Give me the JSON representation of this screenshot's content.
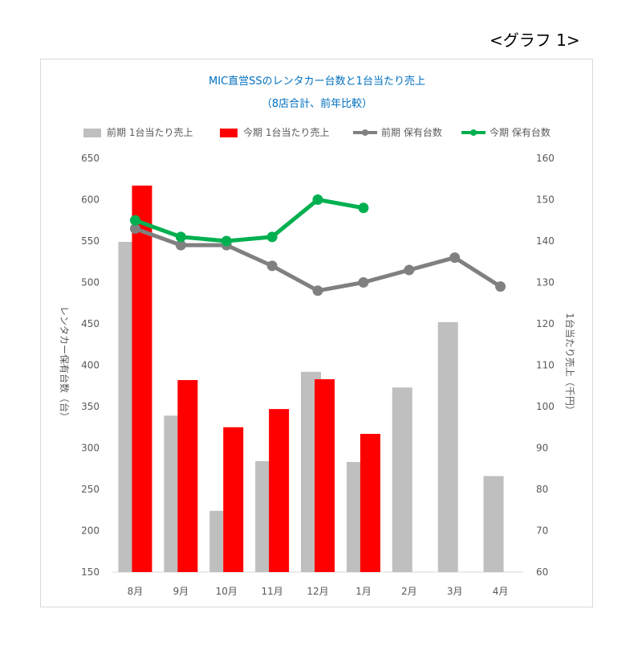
{
  "graph_label": "<グラフ 1>",
  "chart_data": {
    "type": "bar",
    "title": "MIC直営SSのレンタカー台数と1台当たり売上",
    "subtitle": "（8店合計、前年比較）",
    "categories": [
      "8月",
      "9月",
      "10月",
      "11月",
      "12月",
      "1月",
      "2月",
      "3月",
      "4月"
    ],
    "left_axis": {
      "label": "レンタカー保有台数（台）",
      "min": 150,
      "max": 650,
      "step": 50,
      "ticks": [
        "150",
        "200",
        "250",
        "300",
        "350",
        "400",
        "450",
        "500",
        "550",
        "600",
        "650"
      ]
    },
    "right_axis": {
      "label": "1台当たり売上（千円）",
      "min": 60,
      "max": 160,
      "step": 10,
      "ticks": [
        "60",
        "70",
        "80",
        "90",
        "100",
        "110",
        "120",
        "130",
        "140",
        "150",
        "160"
      ]
    },
    "legend_position": "top",
    "series": [
      {
        "name": "前期 1台当たり売上",
        "kind": "bar",
        "axis": "left",
        "color": "#bfbfbf",
        "values": [
          549,
          339,
          224,
          284,
          392,
          283,
          373,
          452,
          266
        ]
      },
      {
        "name": "今期 1台当たり売上",
        "kind": "bar",
        "axis": "left",
        "color": "#ff0000",
        "values": [
          617,
          382,
          325,
          347,
          383,
          317,
          null,
          null,
          null
        ]
      },
      {
        "name": "前期 保有台数",
        "kind": "line",
        "axis": "right",
        "color": "#808080",
        "values": [
          143,
          139,
          139,
          134,
          128,
          130,
          133,
          136,
          129
        ]
      },
      {
        "name": "今期 保有台数",
        "kind": "line",
        "axis": "right",
        "color": "#00b050",
        "values": [
          145,
          141,
          140,
          141,
          150,
          148,
          null,
          null,
          null
        ]
      }
    ]
  }
}
